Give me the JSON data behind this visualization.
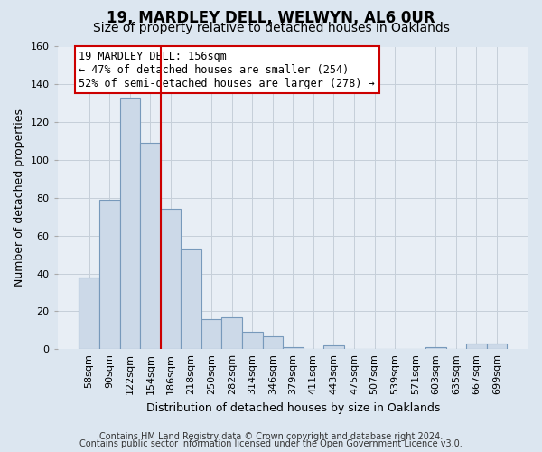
{
  "title": "19, MARDLEY DELL, WELWYN, AL6 0UR",
  "subtitle": "Size of property relative to detached houses in Oaklands",
  "xlabel": "Distribution of detached houses by size in Oaklands",
  "ylabel": "Number of detached properties",
  "bar_values": [
    38,
    79,
    133,
    109,
    74,
    53,
    16,
    17,
    9,
    7,
    1,
    0,
    2,
    0,
    0,
    0,
    0,
    1,
    0,
    3,
    3
  ],
  "bin_labels": [
    "58sqm",
    "90sqm",
    "122sqm",
    "154sqm",
    "186sqm",
    "218sqm",
    "250sqm",
    "282sqm",
    "314sqm",
    "346sqm",
    "379sqm",
    "411sqm",
    "443sqm",
    "475sqm",
    "507sqm",
    "539sqm",
    "571sqm",
    "603sqm",
    "635sqm",
    "667sqm",
    "699sqm"
  ],
  "bar_color": "#ccd9e8",
  "bar_edge_color": "#7799bb",
  "vline_x": 3.5,
  "vline_color": "#cc0000",
  "annotation_text": "19 MARDLEY DELL: 156sqm\n← 47% of detached houses are smaller (254)\n52% of semi-detached houses are larger (278) →",
  "annotation_box_color": "#ffffff",
  "annotation_box_edge": "#cc0000",
  "ylim": [
    0,
    160
  ],
  "yticks": [
    0,
    20,
    40,
    60,
    80,
    100,
    120,
    140,
    160
  ],
  "footer1": "Contains HM Land Registry data © Crown copyright and database right 2024.",
  "footer2": "Contains public sector information licensed under the Open Government Licence v3.0.",
  "bg_color": "#dce6f0",
  "plot_bg_color": "#e8eef5",
  "grid_color": "#c5cfd9",
  "title_fontsize": 12,
  "subtitle_fontsize": 10,
  "axis_label_fontsize": 9,
  "tick_fontsize": 8,
  "footer_fontsize": 7,
  "annot_fontsize": 8.5
}
